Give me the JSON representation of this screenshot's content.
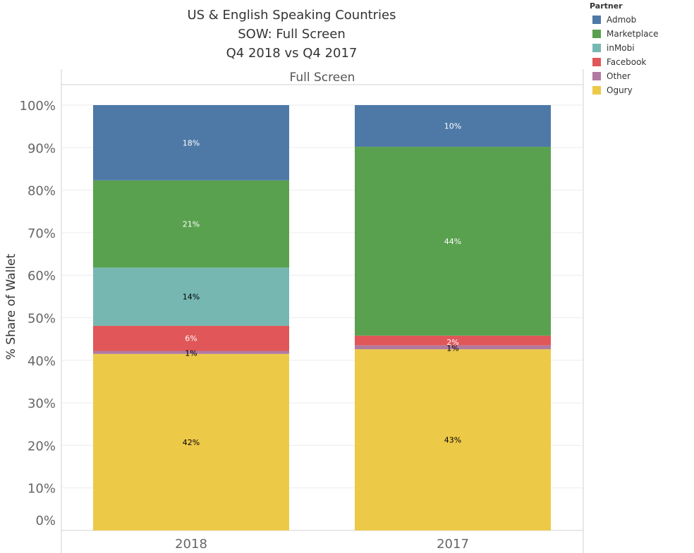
{
  "title_lines": [
    "US & English Speaking Countries",
    "SOW: Full Screen",
    "Q4 2018 vs Q4 2017"
  ],
  "legend": {
    "title": "Partner",
    "items": [
      {
        "name": "Admob",
        "color": "#4e79a7"
      },
      {
        "name": "Marketplace",
        "color": "#59a14f"
      },
      {
        "name": "inMobi",
        "color": "#76b7b2"
      },
      {
        "name": "Facebook",
        "color": "#e15759"
      },
      {
        "name": "Other",
        "color": "#b07aa1"
      },
      {
        "name": "Ogury",
        "color": "#edc948"
      }
    ]
  },
  "chart_data": {
    "type": "bar",
    "stacked": true,
    "panel_title": "Full Screen",
    "ylabel": "% Share of Wallet",
    "xlabel": "",
    "ylim": [
      0,
      100
    ],
    "yticks": [
      "0%",
      "10%",
      "20%",
      "30%",
      "40%",
      "50%",
      "60%",
      "70%",
      "80%",
      "90%",
      "100%"
    ],
    "categories": [
      "2018",
      "2017"
    ],
    "series": [
      {
        "name": "Ogury",
        "color": "#edc948",
        "values": [
          41.5,
          42.6
        ],
        "labels": [
          "42%",
          "43%"
        ],
        "label_color": "#000000"
      },
      {
        "name": "Other",
        "color": "#b07aa1",
        "values": [
          0.7,
          0.9
        ],
        "labels": [
          "1%",
          "1%"
        ],
        "label_color": "#000000"
      },
      {
        "name": "Facebook",
        "color": "#e15759",
        "values": [
          5.9,
          2.3
        ],
        "labels": [
          "6%",
          "2%"
        ],
        "label_color": "#ffffff"
      },
      {
        "name": "inMobi",
        "color": "#76b7b2",
        "values": [
          13.7,
          0
        ],
        "labels": [
          "14%",
          ""
        ],
        "label_color": "#000000"
      },
      {
        "name": "Marketplace",
        "color": "#59a14f",
        "values": [
          20.5,
          44.4
        ],
        "labels": [
          "21%",
          "44%"
        ],
        "label_color": "#ffffff"
      },
      {
        "name": "Admob",
        "color": "#4e79a7",
        "values": [
          17.7,
          9.8
        ],
        "labels": [
          "18%",
          "10%"
        ],
        "label_color": "#ffffff"
      }
    ],
    "grid": true,
    "legend_position": "top-right"
  }
}
